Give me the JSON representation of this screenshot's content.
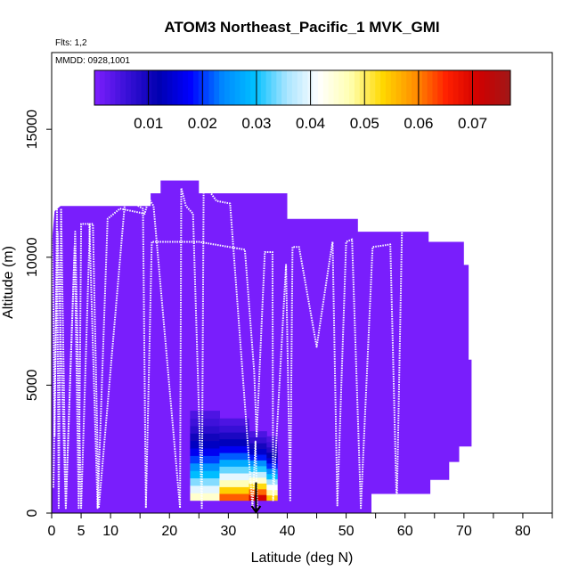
{
  "chart_data": {
    "type": "heatmap",
    "title": "ATOM3 Northeast_Pacific_1 MVK_GMI",
    "info_line_1": "Flts: 1,2",
    "info_line_2": "MMDD: 0928,1001",
    "xlabel": "Latitude (deg N)",
    "ylabel": "Altitude (m)",
    "xlim": [
      0,
      85
    ],
    "ylim": [
      0,
      18000
    ],
    "x_ticks": [
      0,
      5,
      10,
      20,
      30,
      40,
      50,
      60,
      70,
      80
    ],
    "x_tick_labels": [
      "0",
      "5",
      "10",
      "20",
      "30",
      "40",
      "50",
      "60",
      "70",
      "80"
    ],
    "x_minor_ticks": [
      0,
      5,
      10,
      15,
      20,
      25,
      30,
      35,
      40,
      45,
      50,
      55,
      60,
      65,
      70,
      75,
      80,
      85
    ],
    "y_ticks": [
      0,
      5000,
      10000,
      15000
    ],
    "y_tick_labels": [
      "0",
      "5000",
      "10000",
      "15000"
    ],
    "colorbar": {
      "min": 0.0,
      "max": 0.077,
      "ticks": [
        0.01,
        0.02,
        0.03,
        0.04,
        0.05,
        0.06,
        0.07
      ],
      "tick_labels": [
        "0.01",
        "0.02",
        "0.03",
        "0.04",
        "0.05",
        "0.06",
        "0.07"
      ],
      "colors": [
        "#7f1fff",
        "#3a10d8",
        "#0000b0",
        "#0000ff",
        "#0088ff",
        "#00c0ff",
        "#a8e4ff",
        "#ffffff",
        "#ffffb0",
        "#ffd800",
        "#ff9000",
        "#ff2000",
        "#d00000",
        "#a01818"
      ]
    },
    "background_value": 0.0005,
    "background_region": {
      "lat_start": 0,
      "lat_end": 71.3,
      "top_altitude": [
        [
          0,
          10500
        ],
        [
          0.5,
          11800
        ],
        [
          1.5,
          12000
        ],
        [
          16.8,
          12000
        ],
        [
          16.8,
          12500
        ],
        [
          18.5,
          12500
        ],
        [
          18.5,
          13000
        ],
        [
          25,
          13000
        ],
        [
          25,
          12500
        ],
        [
          40,
          12500
        ],
        [
          40,
          11500
        ],
        [
          52,
          11500
        ],
        [
          52,
          11000
        ],
        [
          64,
          11000
        ],
        [
          64,
          10600
        ],
        [
          70,
          10600
        ],
        [
          70,
          9700
        ],
        [
          70.8,
          9700
        ],
        [
          70.8,
          6000
        ],
        [
          71.3,
          6000
        ]
      ],
      "bottom_edge": [
        [
          0,
          0
        ],
        [
          54.3,
          0
        ],
        [
          54.3,
          750
        ],
        [
          64.3,
          750
        ],
        [
          64.3,
          1300
        ],
        [
          67.5,
          1300
        ],
        [
          67.5,
          2000
        ],
        [
          69.2,
          2000
        ],
        [
          69.2,
          2600
        ],
        [
          71.3,
          2600
        ],
        [
          71.3,
          3500
        ]
      ]
    },
    "enhancement_columns": [
      {
        "lat_start": 23.5,
        "lat_end": 28.5,
        "floor": 500,
        "top": 4000,
        "peak_value": 0.048
      },
      {
        "lat_start": 28.5,
        "lat_end": 33.5,
        "floor": 500,
        "top": 3700,
        "peak_value": 0.066
      },
      {
        "lat_start": 33.5,
        "lat_end": 36.5,
        "floor": 500,
        "top": 3200,
        "peak_value": 0.075
      },
      {
        "lat_start": 36.5,
        "lat_end": 38.3,
        "floor": 500,
        "top": 3000,
        "peak_value": 0.058
      }
    ],
    "flight_track_1": {
      "latitude": [
        0,
        0.3,
        0.5,
        0.9,
        1.2,
        1.6,
        2.4,
        3.9,
        4.6,
        5.0,
        6.4,
        7.8,
        9.5,
        11.6,
        15.8,
        16.5,
        17.3,
        21.8,
        22.0,
        22.8,
        24.0,
        25.5,
        25.8,
        26.4,
        28.0,
        30.3,
        34.1,
        34.6,
        34.9
      ],
      "altitude": [
        11000,
        8000,
        3000,
        11900,
        200,
        11900,
        200,
        10400,
        200,
        11300,
        11300,
        200,
        11500,
        11900,
        11700,
        12300,
        12000,
        200,
        12700,
        12000,
        11700,
        200,
        12600,
        12700,
        12200,
        12100,
        200,
        2800,
        200
      ]
    },
    "flight_track_2": {
      "latitude": [
        0.3,
        1.0,
        2.4,
        4.0,
        5.0,
        6.5,
        7.0,
        8.0,
        12.5,
        15.5,
        16.0,
        17.0,
        25.0,
        32.8,
        34.4,
        34.8,
        36.2,
        37.5,
        37.6,
        39.8,
        40.5,
        40.9,
        42.0,
        45.0,
        47.0,
        47.7,
        48.5,
        50.0,
        51.0,
        52.5,
        54.5,
        57.5,
        58.6,
        59.5,
        64.0,
        66.5,
        70.0,
        71.0,
        72.0
      ],
      "altitude": [
        1000,
        11000,
        200,
        11000,
        200,
        11300,
        11300,
        200,
        12300,
        11900,
        200,
        10600,
        10600,
        10300,
        5500,
        3000,
        10200,
        10200,
        500,
        9700,
        500,
        10400,
        10400,
        6500,
        9600,
        10600,
        300,
        10600,
        10700,
        200,
        10400,
        10500,
        200,
        11300,
        11200,
        11000,
        10900,
        10800,
        10600
      ]
    },
    "marker_arrow": {
      "latitude": 34.7,
      "from_altitude": 1200,
      "to_altitude": 0
    }
  }
}
